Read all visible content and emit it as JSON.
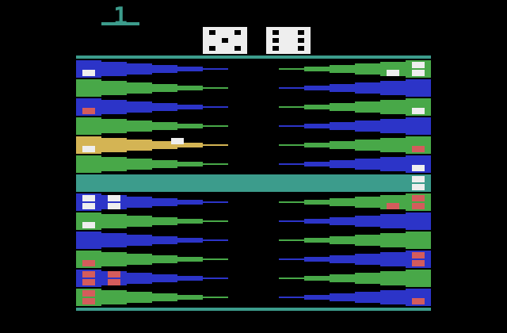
{
  "score": "1",
  "dice": [
    5,
    6
  ]
}
